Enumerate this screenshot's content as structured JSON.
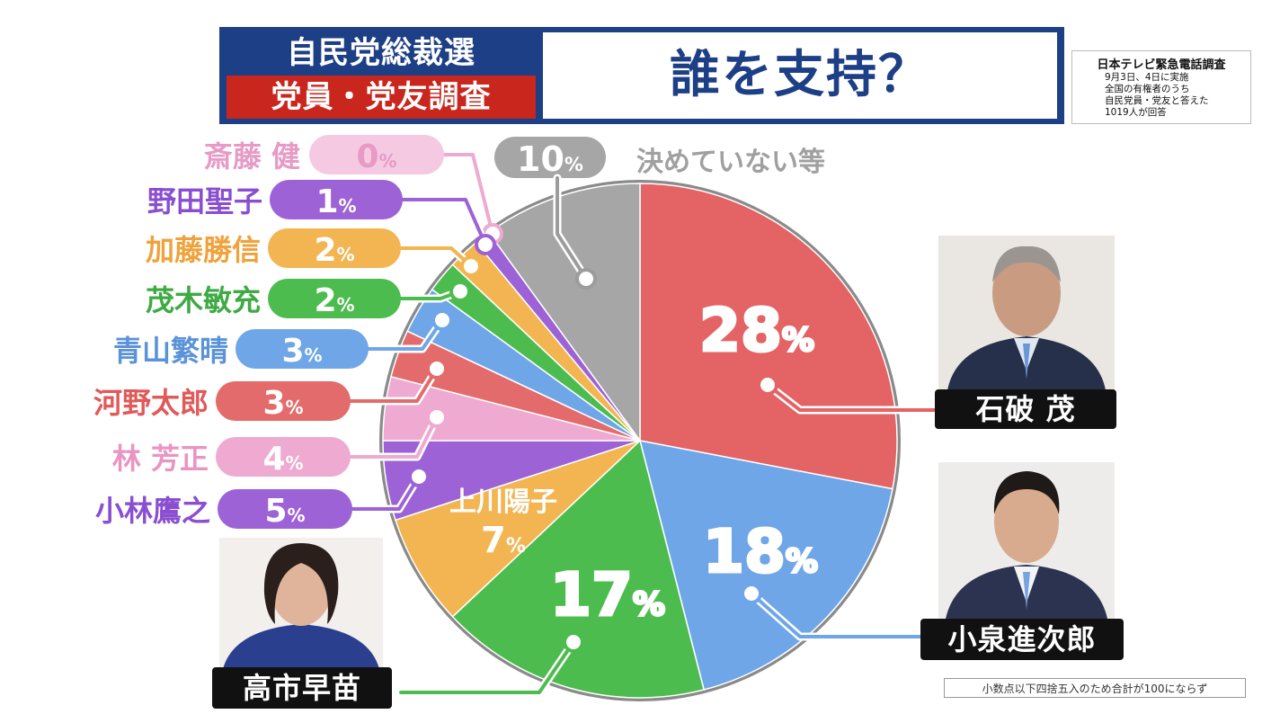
{
  "header": {
    "title_top": "自民党総裁選",
    "title_bottom": "党員・党友調査",
    "question": "誰を支持？"
  },
  "survey_note": {
    "source": "日本テレビ緊急電話調査",
    "lines": [
      "9月3日、4日に実施",
      "全国の有権者のうち",
      "自民党員・党友と答えた",
      "1019人が回答"
    ]
  },
  "footnote": "小数点以下四捨五入のため合計が100にならず",
  "colors": {
    "navy": "#1d3f86",
    "red_band": "#c9261e"
  },
  "chart_data": {
    "type": "pie",
    "title": "誰を支持？",
    "unit": "%",
    "slices": [
      {
        "name": "石破 茂",
        "value": 28,
        "label": "28%",
        "color": "#e46364"
      },
      {
        "name": "小泉進次郎",
        "value": 18,
        "label": "18%",
        "color": "#6fa6e8"
      },
      {
        "name": "高市早苗",
        "value": 17,
        "label": "17%",
        "color": "#4dbc4f"
      },
      {
        "name": "上川陽子",
        "value": 7,
        "label": "7%",
        "color": "#f2b552"
      },
      {
        "name": "小林鷹之",
        "value": 5,
        "label": "5%",
        "color": "#9d62d6"
      },
      {
        "name": "林 芳正",
        "value": 4,
        "label": "4%",
        "color": "#eeaad0"
      },
      {
        "name": "河野太郎",
        "value": 3,
        "label": "3%",
        "color": "#e46b6b"
      },
      {
        "name": "青山繁晴",
        "value": 3,
        "label": "3%",
        "color": "#6fa6e8"
      },
      {
        "name": "茂木敏充",
        "value": 2,
        "label": "2%",
        "color": "#4dbc4f"
      },
      {
        "name": "加藤勝信",
        "value": 2,
        "label": "2%",
        "color": "#f2b552"
      },
      {
        "name": "野田聖子",
        "value": 1,
        "label": "1%",
        "color": "#9d62d6"
      },
      {
        "name": "斎藤 健",
        "value": 0,
        "label": "0%",
        "color": "#eeaad0"
      },
      {
        "name": "決めていない等",
        "value": 10,
        "label": "10%",
        "color": "#a6a6a6"
      }
    ]
  }
}
